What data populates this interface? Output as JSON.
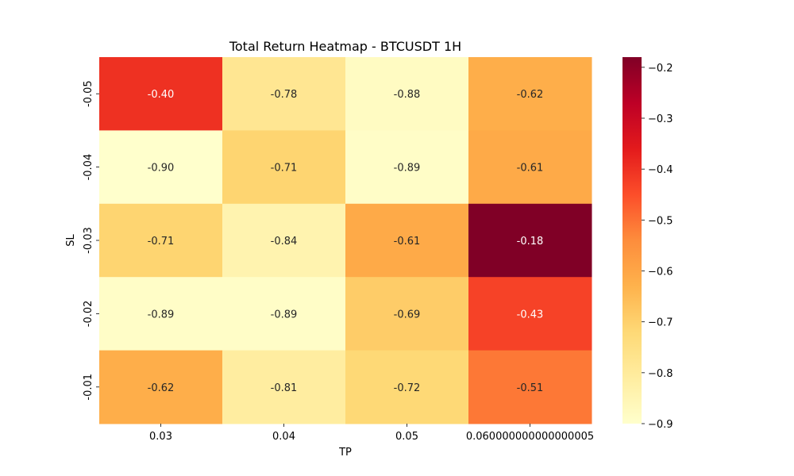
{
  "chart_data": {
    "type": "heatmap",
    "title": "Total Return Heatmap - BTCUSDT 1H",
    "xlabel": "TP",
    "ylabel": "SL",
    "x_categories": [
      "0.03",
      "0.04",
      "0.05",
      "0.060000000000000005"
    ],
    "y_categories": [
      "-0.05",
      "-0.04",
      "-0.03",
      "-0.02",
      "-0.01"
    ],
    "values": [
      [
        -0.4,
        -0.78,
        -0.88,
        -0.62
      ],
      [
        -0.9,
        -0.71,
        -0.89,
        -0.61
      ],
      [
        -0.71,
        -0.84,
        -0.61,
        -0.18
      ],
      [
        -0.89,
        -0.89,
        -0.69,
        -0.43
      ],
      [
        -0.62,
        -0.81,
        -0.72,
        -0.51
      ]
    ],
    "cell_labels": [
      [
        "-0.40",
        "-0.78",
        "-0.88",
        "-0.62"
      ],
      [
        "-0.90",
        "-0.71",
        "-0.89",
        "-0.61"
      ],
      [
        "-0.71",
        "-0.84",
        "-0.61",
        "-0.18"
      ],
      [
        "-0.89",
        "-0.89",
        "-0.69",
        "-0.43"
      ],
      [
        "-0.62",
        "-0.81",
        "-0.72",
        "-0.51"
      ]
    ],
    "colormap": "YlOrRd",
    "colorbar": {
      "range": [
        -0.9,
        -0.18
      ],
      "ticks": [
        -0.2,
        -0.3,
        -0.4,
        -0.5,
        -0.6,
        -0.7,
        -0.8,
        -0.9
      ],
      "tick_labels": [
        "−0.2",
        "−0.3",
        "−0.4",
        "−0.5",
        "−0.6",
        "−0.7",
        "−0.8",
        "−0.9"
      ]
    },
    "grid": false
  }
}
